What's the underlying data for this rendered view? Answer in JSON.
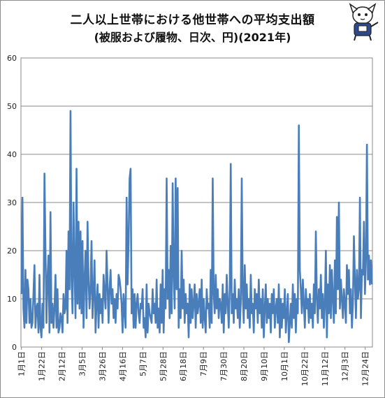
{
  "chart_data": {
    "type": "line",
    "title": "二人以上世帯における他世帯への平均支出額",
    "subtitle": "(被服および履物、日次、円)(2021年)",
    "xlabel": "",
    "ylabel": "",
    "ylim": [
      0,
      60
    ],
    "yticks": [
      "0",
      "10",
      "20",
      "30",
      "40",
      "50",
      "60"
    ],
    "xticks": [
      "1月1日",
      "1月22日",
      "2月12日",
      "3月5日",
      "3月26日",
      "4月16日",
      "5月7日",
      "5月28日",
      "6月18日",
      "7月9日",
      "7月30日",
      "8月20日",
      "9月10日",
      "10月1日",
      "10月22日",
      "11月12日",
      "12月3日",
      "12月24日"
    ],
    "x_start": "2021-01-01",
    "x_end": "2021-12-31",
    "grid": "horizontal",
    "legend": "none",
    "line_color": "#4a7ebb",
    "series": [
      {
        "values": [
          11,
          31,
          8,
          4,
          16,
          5,
          14,
          12,
          5,
          10,
          4,
          5,
          11,
          17,
          4,
          8,
          9,
          3,
          15,
          4,
          2,
          9,
          4,
          36,
          20,
          5,
          14,
          19,
          3,
          28,
          5,
          9,
          4,
          8,
          15,
          4,
          12,
          3,
          4,
          7,
          6,
          3,
          11,
          7,
          8,
          20,
          5,
          24,
          12,
          49,
          14,
          7,
          30,
          16,
          6,
          37,
          9,
          26,
          8,
          24,
          7,
          22,
          4,
          14,
          20,
          6,
          26,
          14,
          8,
          12,
          22,
          6,
          11,
          18,
          3,
          9,
          13,
          4,
          11,
          7,
          10,
          5,
          15,
          11,
          8,
          20,
          13,
          5,
          12,
          16,
          9,
          12,
          6,
          10,
          5,
          11,
          8,
          15,
          14,
          12,
          9,
          3,
          11,
          7,
          4,
          31,
          13,
          22,
          35,
          37,
          7,
          12,
          4,
          11,
          4,
          9,
          11,
          7,
          5,
          9,
          8,
          12,
          4,
          6,
          2,
          13,
          3,
          9,
          7,
          6,
          5,
          12,
          7,
          9,
          5,
          14,
          4,
          8,
          3,
          13,
          5,
          16,
          3,
          12,
          8,
          35,
          10,
          16,
          6,
          21,
          7,
          34,
          15,
          8,
          35,
          12,
          33,
          4,
          12,
          6,
          20,
          8,
          14,
          5,
          11,
          7,
          9,
          2,
          13,
          5,
          12,
          6,
          9,
          13,
          4,
          11,
          7,
          9,
          12,
          5,
          14,
          4,
          10,
          6,
          3,
          12,
          8,
          9,
          4,
          16,
          5,
          35,
          11,
          7,
          15,
          8,
          12,
          6,
          10,
          9,
          5,
          13,
          3,
          11,
          7,
          15,
          9,
          4,
          12,
          38,
          7,
          11,
          5,
          14,
          8,
          10,
          6,
          12,
          4,
          9,
          35,
          11,
          5,
          17,
          8,
          13,
          6,
          10,
          4,
          15,
          7,
          9,
          3,
          12,
          8,
          11,
          5,
          14,
          7,
          10,
          4,
          12,
          2,
          8,
          13,
          5,
          10,
          6,
          9,
          3,
          11,
          7,
          12,
          4,
          8,
          10,
          5,
          13,
          2,
          10,
          4,
          9,
          6,
          12,
          3,
          7,
          11,
          1,
          5,
          9,
          4,
          13,
          6,
          11,
          3,
          10,
          7,
          46,
          16,
          12,
          7,
          14,
          9,
          4,
          12,
          8,
          10,
          5,
          11,
          6,
          9,
          4,
          13,
          7,
          24,
          10,
          5,
          12,
          8,
          15,
          6,
          11,
          4,
          9,
          20,
          2,
          13,
          7,
          17,
          6,
          16,
          10,
          5,
          18,
          7,
          27,
          12,
          30,
          8,
          14,
          10,
          6,
          12,
          9,
          5,
          17,
          11,
          16,
          7,
          12,
          4,
          9,
          23,
          14,
          6,
          16,
          10,
          12,
          31,
          6,
          16,
          15,
          26,
          11,
          18,
          42,
          14,
          19,
          13,
          18,
          13
        ]
      }
    ]
  }
}
